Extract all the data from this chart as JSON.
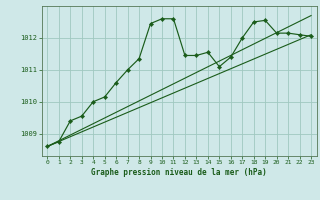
{
  "background_color": "#cfe8e8",
  "plot_bg_color": "#cfe8e8",
  "grid_color": "#a0c8c0",
  "line_color": "#1a5c1a",
  "marker_color": "#1a5c1a",
  "title": "Graphe pression niveau de la mer (hPa)",
  "title_color": "#1a5c1a",
  "tick_color": "#1a5c1a",
  "xlim": [
    -0.5,
    23.5
  ],
  "ylim": [
    1008.3,
    1013.0
  ],
  "yticks": [
    1009,
    1010,
    1011,
    1012
  ],
  "xticks": [
    0,
    1,
    2,
    3,
    4,
    5,
    6,
    7,
    8,
    9,
    10,
    11,
    12,
    13,
    14,
    15,
    16,
    17,
    18,
    19,
    20,
    21,
    22,
    23
  ],
  "series": [
    {
      "x": [
        0,
        23
      ],
      "y": [
        1008.6,
        1012.1
      ]
    },
    {
      "x": [
        0,
        23
      ],
      "y": [
        1008.6,
        1012.7
      ]
    },
    {
      "x": [
        0,
        1,
        2,
        3,
        4,
        5,
        6,
        7,
        8,
        9,
        10,
        11,
        12,
        13,
        14,
        15,
        16,
        17,
        18,
        19,
        20,
        21,
        22,
        23
      ],
      "y": [
        1008.6,
        1008.75,
        1009.4,
        1009.55,
        1010.0,
        1010.15,
        1010.6,
        1011.0,
        1011.35,
        1012.45,
        1012.6,
        1012.6,
        1011.45,
        1011.45,
        1011.55,
        1011.1,
        1011.4,
        1012.0,
        1012.5,
        1012.55,
        1012.15,
        1012.15,
        1012.1,
        1012.05
      ]
    }
  ]
}
